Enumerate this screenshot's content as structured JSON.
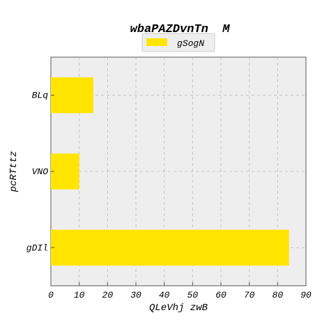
{
  "chart_data": {
    "type": "bar",
    "orientation": "horizontal",
    "title": "wbaPAZDvnTn  M",
    "xlabel": "QLeVhj zwB",
    "ylabel": "pcRTttz",
    "categories": [
      "BLq",
      "VNO",
      "gDIl"
    ],
    "series": [
      {
        "name": "gSogN",
        "values": [
          15,
          10,
          84
        ]
      }
    ],
    "xlim": [
      0,
      90
    ],
    "xticks": [
      0,
      10,
      20,
      30,
      40,
      50,
      60,
      70,
      80,
      90
    ],
    "grid": true,
    "legend_position": "top-center",
    "colors": {
      "bar": "#ffe500",
      "plot_bg": "#eeeeee",
      "grid": "#bbbbbb",
      "axis": "#555555"
    }
  }
}
